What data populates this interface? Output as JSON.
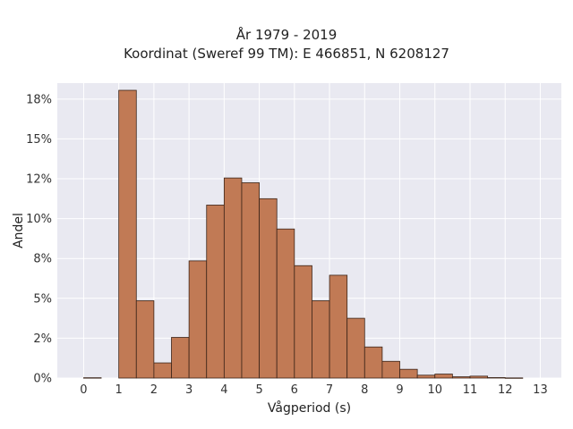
{
  "chart_data": {
    "type": "bar",
    "title": "År 1979 - 2019",
    "subtitle": "Koordinat (Sweref 99 TM): E 466851, N 6208127",
    "xlabel": "Vågperiod (s)",
    "ylabel": "Andel",
    "xlim": [
      -0.75,
      13.6
    ],
    "ylim": [
      0,
      0.185
    ],
    "grid": true,
    "bin_width": 0.5,
    "bin_edges_start": [
      0,
      0.5,
      1,
      1.5,
      2,
      2.5,
      3,
      3.5,
      4,
      4.5,
      5,
      5.5,
      6,
      6.5,
      7,
      7.5,
      8,
      8.5,
      9,
      9.5,
      10,
      10.5,
      11,
      11.5,
      12,
      12.5
    ],
    "values": [
      0.0002,
      0,
      0.1805,
      0.0485,
      0.0095,
      0.0255,
      0.0735,
      0.1085,
      0.1255,
      0.1225,
      0.1125,
      0.0935,
      0.0705,
      0.0485,
      0.0645,
      0.0375,
      0.0195,
      0.0105,
      0.0055,
      0.0018,
      0.0025,
      0.0008,
      0.0012,
      0.0003,
      0.0001,
      0
    ],
    "xticks": [
      "0",
      "1",
      "2",
      "3",
      "4",
      "5",
      "6",
      "7",
      "8",
      "9",
      "10",
      "11",
      "12",
      "13"
    ],
    "yticks": [
      {
        "value": 0,
        "label": "0%"
      },
      {
        "value": 0.025,
        "label": "2%"
      },
      {
        "value": 0.05,
        "label": "5%"
      },
      {
        "value": 0.075,
        "label": "8%"
      },
      {
        "value": 0.1,
        "label": "10%"
      },
      {
        "value": 0.125,
        "label": "12%"
      },
      {
        "value": 0.15,
        "label": "15%"
      },
      {
        "value": 0.175,
        "label": "18%"
      }
    ],
    "colors": {
      "bar_fill": "#c17a55",
      "bar_edge": "#3b2418",
      "plot_background": "#e9e9f1",
      "grid": "#ffffff"
    }
  }
}
